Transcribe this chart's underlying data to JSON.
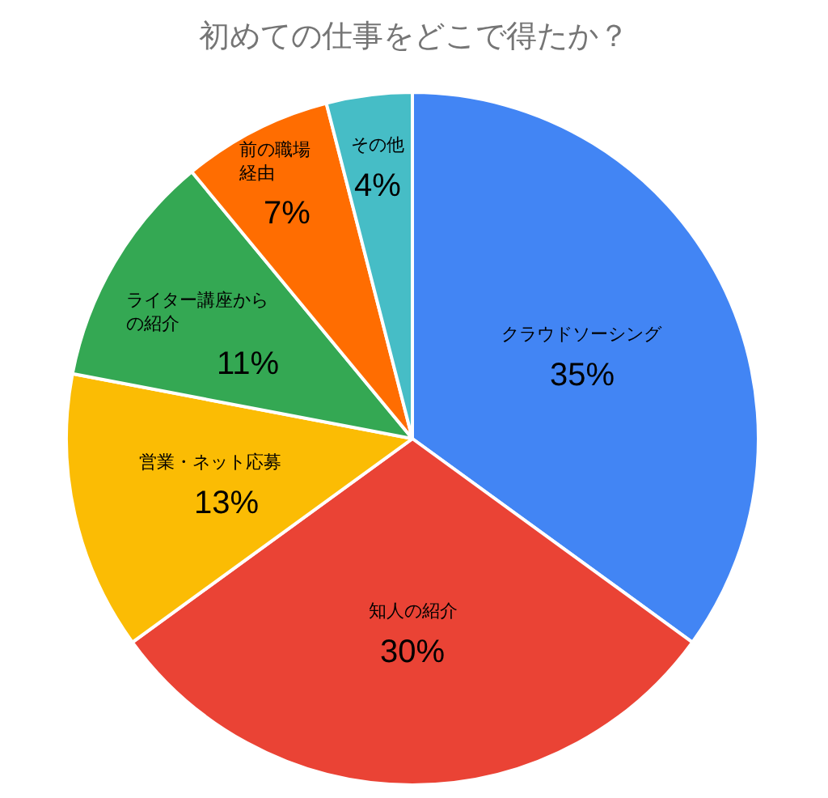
{
  "chart_data": {
    "type": "pie",
    "title": "初めての仕事をどこで得たか？",
    "categories": [
      "クラウドソーシング",
      "知人の紹介",
      "営業・ネット応募",
      "ライター講座からの紹介",
      "前の職場経由",
      "その他"
    ],
    "values": [
      35,
      30,
      13,
      11,
      7,
      4
    ],
    "value_labels": [
      "35%",
      "30%",
      "13%",
      "11%",
      "7%",
      "4%"
    ],
    "colors": [
      "#4285f4",
      "#ea4335",
      "#fbbc04",
      "#34a853",
      "#ff6d01",
      "#46bdc6"
    ],
    "legend": false
  }
}
